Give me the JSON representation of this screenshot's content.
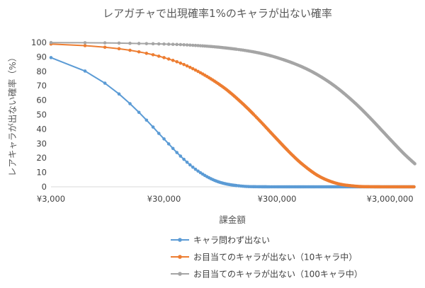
{
  "chart_data": {
    "type": "line",
    "title": "レアガチャで出現確率1%のキャラが出ない確率",
    "xlabel": "課金額",
    "ylabel": "レアキャラが出ない確率（%）",
    "x_scale": "log",
    "xlim": [
      3000,
      5000000
    ],
    "ylim": [
      0,
      100
    ],
    "x_tick_labels": [
      "¥3,000",
      "¥30,000",
      "¥300,000",
      "¥3,000,000"
    ],
    "x_tick_values": [
      3000,
      30000,
      300000,
      3000000
    ],
    "y_ticks": [
      0,
      10,
      20,
      30,
      40,
      50,
      60,
      70,
      80,
      90,
      100
    ],
    "grid": false,
    "legend_position": "bottom",
    "series": [
      {
        "name": "キャラ問わず出ない",
        "color": "#5b9bd5",
        "x": [
          3000,
          6000,
          9000,
          12000,
          15000,
          18000,
          21000,
          24000,
          27000,
          30000,
          40000,
          50000,
          60000,
          80000,
          100000,
          150000,
          200000,
          300000,
          500000,
          1000000,
          2000000,
          5000000
        ],
        "y": [
          89.5,
          80.2,
          71.8,
          64.3,
          57.6,
          51.6,
          46.2,
          41.4,
          37.0,
          33.2,
          22.9,
          15.8,
          10.9,
          5.2,
          2.5,
          0.4,
          0.06,
          0.0,
          0.0,
          0.0,
          0.0,
          0.0
        ]
      },
      {
        "name": "お目当てのキャラが出ない（10キャラ中）",
        "color": "#ed7d31",
        "x": [
          3000,
          6000,
          9000,
          15000,
          30000,
          50000,
          100000,
          150000,
          200000,
          300000,
          400000,
          500000,
          700000,
          1000000,
          1500000,
          2000000,
          3000000,
          5000000
        ],
        "y": [
          98.9,
          97.8,
          96.7,
          94.6,
          89.5,
          83.1,
          69.1,
          57.4,
          47.7,
          33.0,
          22.8,
          15.8,
          7.5,
          2.5,
          0.4,
          0.06,
          0.0,
          0.0
        ]
      },
      {
        "name": "お目当てのキャラが出ない（100キャラ中）",
        "color": "#a5a5a5",
        "x": [
          3000,
          6000,
          9000,
          15000,
          30000,
          50000,
          100000,
          200000,
          300000,
          500000,
          700000,
          1000000,
          1500000,
          2000000,
          3000000,
          4000000,
          5000000
        ],
        "y": [
          99.9,
          99.8,
          99.7,
          99.4,
          98.9,
          98.2,
          96.4,
          93.0,
          89.5,
          83.1,
          77.2,
          69.1,
          57.4,
          47.7,
          33.0,
          22.8,
          15.8
        ]
      }
    ]
  }
}
